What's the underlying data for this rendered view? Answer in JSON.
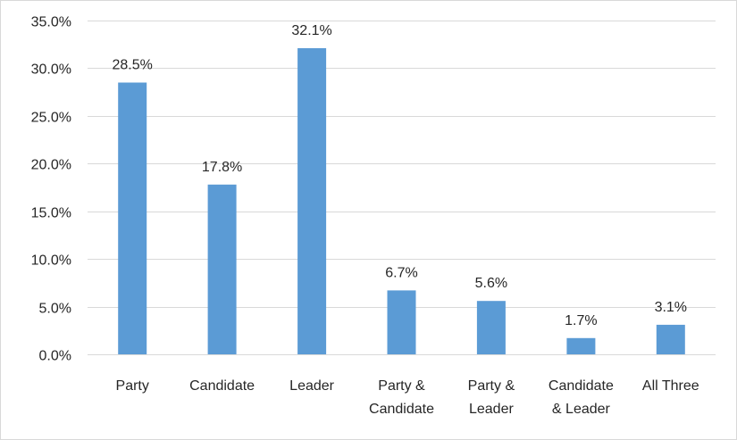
{
  "chart_data": {
    "type": "bar",
    "categories": [
      [
        "Party"
      ],
      [
        "Candidate"
      ],
      [
        "Leader"
      ],
      [
        "Party &",
        "Candidate"
      ],
      [
        "Party &",
        "Leader"
      ],
      [
        "Candidate",
        "& Leader"
      ],
      [
        "All Three"
      ]
    ],
    "values": [
      28.5,
      17.8,
      32.1,
      6.7,
      5.6,
      1.7,
      3.1
    ],
    "data_labels": [
      "28.5%",
      "17.8%",
      "32.1%",
      "6.7%",
      "5.6%",
      "1.7%",
      "3.1%"
    ],
    "y_ticks": [
      "0.0%",
      "5.0%",
      "10.0%",
      "15.0%",
      "20.0%",
      "25.0%",
      "30.0%",
      "35.0%"
    ],
    "ylim": [
      0,
      35
    ],
    "grid": true,
    "legend": "none",
    "bar_color": "#5b9bd5"
  }
}
